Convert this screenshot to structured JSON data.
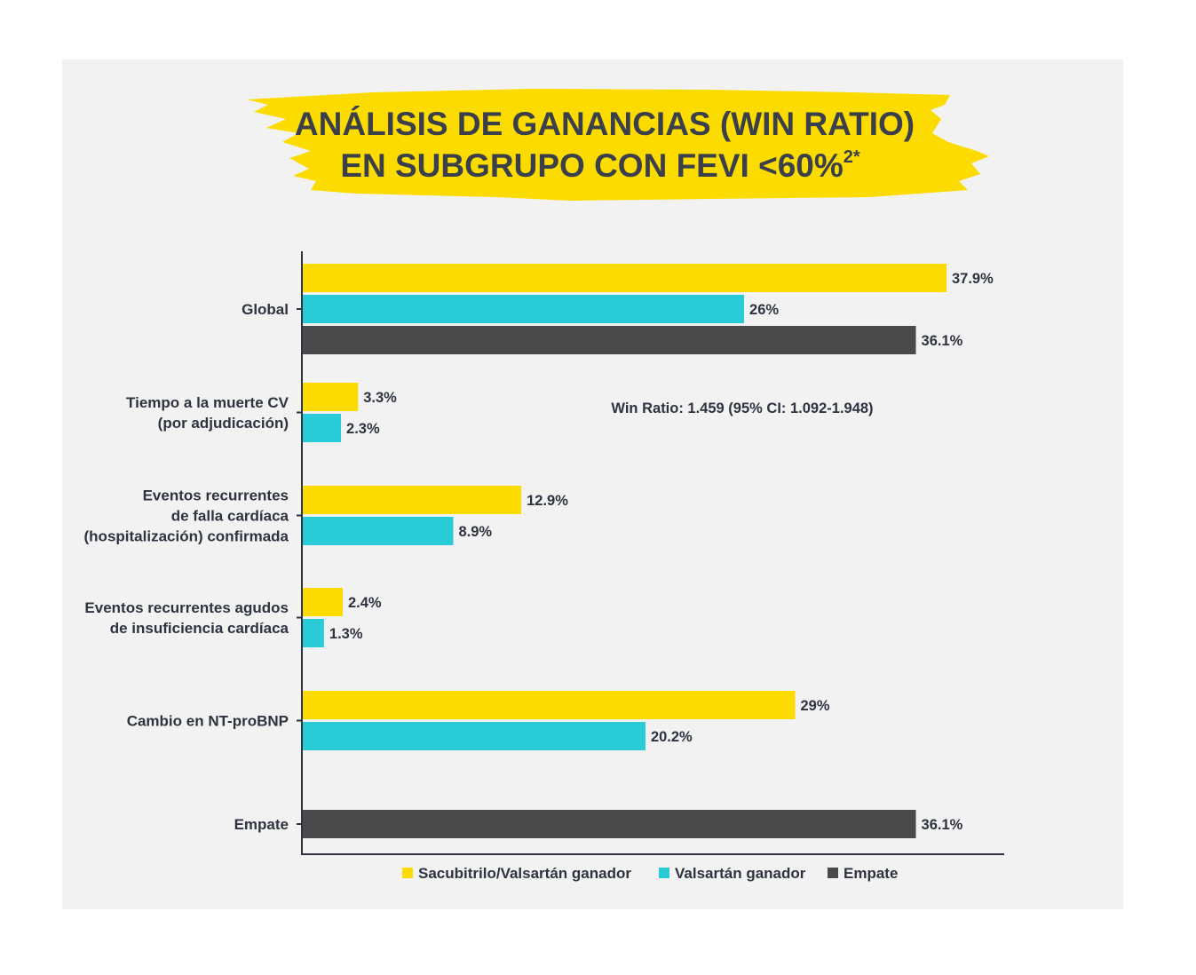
{
  "chart_data": {
    "type": "bar",
    "orientation": "horizontal",
    "title_lines": [
      "ANÁLISIS DE GANANCIAS (WIN RATIO)",
      "EN SUBGRUPO CON FEVI <60%"
    ],
    "title_superscript": "2*",
    "annotation": "Win Ratio: 1.459 (95% CI: 1.092-1.948)",
    "xlim": [
      0,
      40
    ],
    "categories": [
      {
        "name": "global",
        "lines": [
          "Global"
        ]
      },
      {
        "name": "tiempo-muerte-cv",
        "lines": [
          "Tiempo a la muerte CV",
          "(por adjudicación)"
        ]
      },
      {
        "name": "eventos-falla-cardiaca",
        "lines": [
          "Eventos recurrentes",
          "de falla cardíaca",
          "(hospitalización) confirmada"
        ]
      },
      {
        "name": "eventos-agudos-insuficiencia",
        "lines": [
          "Eventos recurrentes agudos",
          "de insuficiencia cardíaca"
        ]
      },
      {
        "name": "cambio-nt-probnp",
        "lines": [
          "Cambio en NT-proBNP"
        ]
      },
      {
        "name": "empate",
        "lines": [
          "Empate"
        ]
      }
    ],
    "series": [
      {
        "name": "Sacubitrilo/Valsartán ganador",
        "color": "#fcdc00",
        "values": [
          37.9,
          3.3,
          12.9,
          2.4,
          29,
          null
        ],
        "labels": [
          "37.9%",
          "3.3%",
          "12.9%",
          "2.4%",
          "29%",
          ""
        ]
      },
      {
        "name": "Valsartán ganador",
        "color": "#29cbd6",
        "values": [
          26,
          2.3,
          8.9,
          1.3,
          20.2,
          null
        ],
        "labels": [
          "26%",
          "2.3%",
          "8.9%",
          "1.3%",
          "20.2%",
          ""
        ]
      },
      {
        "name": "Empate",
        "color": "#4a4a4c",
        "values": [
          36.1,
          null,
          null,
          null,
          null,
          36.1
        ],
        "labels": [
          "36.1%",
          "",
          "",
          "",
          "",
          "36.1%"
        ]
      }
    ],
    "legend_position": "bottom-center",
    "grid": false
  }
}
